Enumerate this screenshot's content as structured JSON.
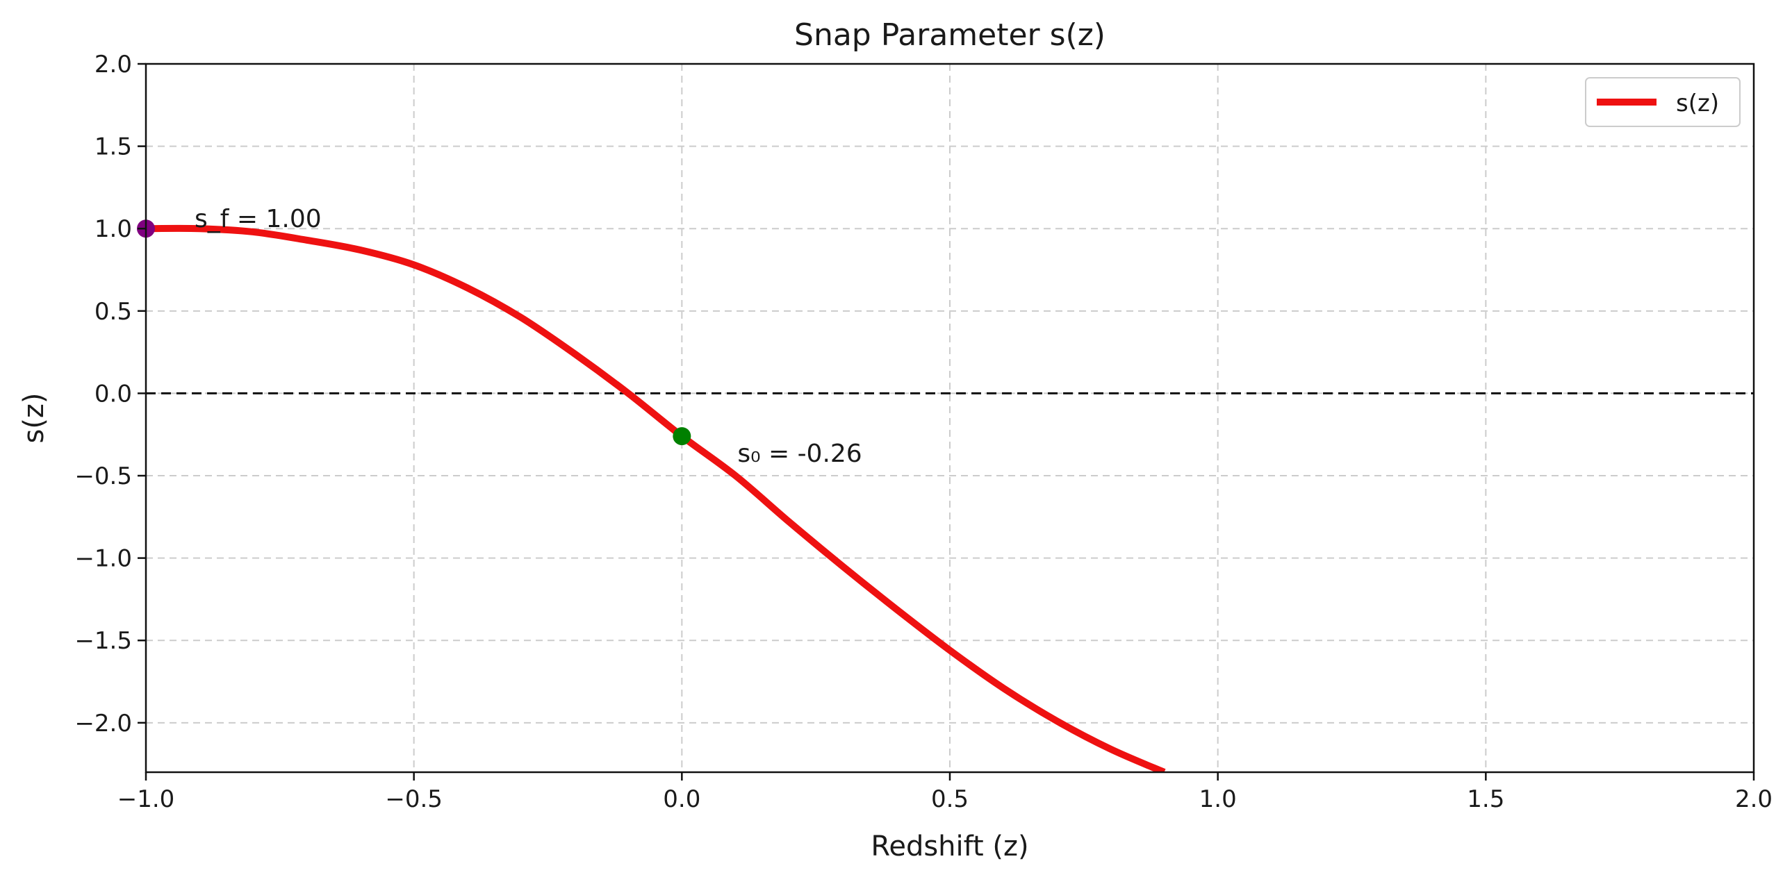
{
  "chart_data": {
    "type": "line",
    "title": "Snap Parameter s(z)",
    "xlabel": "Redshift (z)",
    "ylabel": "s(z)",
    "xlim": [
      -1.0,
      2.0
    ],
    "ylim": [
      -2.3,
      2.0
    ],
    "xticks": [
      -1.0,
      -0.5,
      0.0,
      0.5,
      1.0,
      1.5,
      2.0
    ],
    "yticks": [
      -2.0,
      -1.5,
      -1.0,
      -0.5,
      0.0,
      0.5,
      1.0,
      1.5,
      2.0
    ],
    "xtick_labels": [
      "−1.0",
      "−0.5",
      "0.0",
      "0.5",
      "1.0",
      "1.5",
      "2.0"
    ],
    "ytick_labels": [
      "−2.0",
      "−1.5",
      "−1.0",
      "−0.5",
      "0.0",
      "0.5",
      "1.0",
      "1.5",
      "2.0"
    ],
    "grid": true,
    "legend": {
      "position": "top-right",
      "entries": [
        "s(z)"
      ]
    },
    "colors": {
      "curve": "#ee1111",
      "zero_line": "#111111",
      "grid": "#cccccc",
      "future_point": "#800080",
      "present_point": "#008000"
    },
    "series": [
      {
        "name": "s(z)",
        "x": [
          -1.0,
          -0.9,
          -0.8,
          -0.7,
          -0.6,
          -0.5,
          -0.4,
          -0.3,
          -0.2,
          -0.1,
          0.0,
          0.1,
          0.2,
          0.3,
          0.4,
          0.5,
          0.6,
          0.7,
          0.8,
          0.9
        ],
        "y": [
          1.0,
          1.0,
          0.98,
          0.93,
          0.87,
          0.78,
          0.64,
          0.46,
          0.24,
          0.0,
          -0.26,
          -0.5,
          -0.78,
          -1.05,
          -1.31,
          -1.56,
          -1.79,
          -1.99,
          -2.16,
          -2.3
        ]
      }
    ],
    "points": [
      {
        "name": "future",
        "x": -1.0,
        "y": 1.0,
        "label": "s_f = 1.00"
      },
      {
        "name": "present",
        "x": 0.0,
        "y": -0.26,
        "label": "s₀ = -0.26"
      }
    ],
    "reference_line": {
      "y": 0.0,
      "style": "dashed"
    }
  }
}
